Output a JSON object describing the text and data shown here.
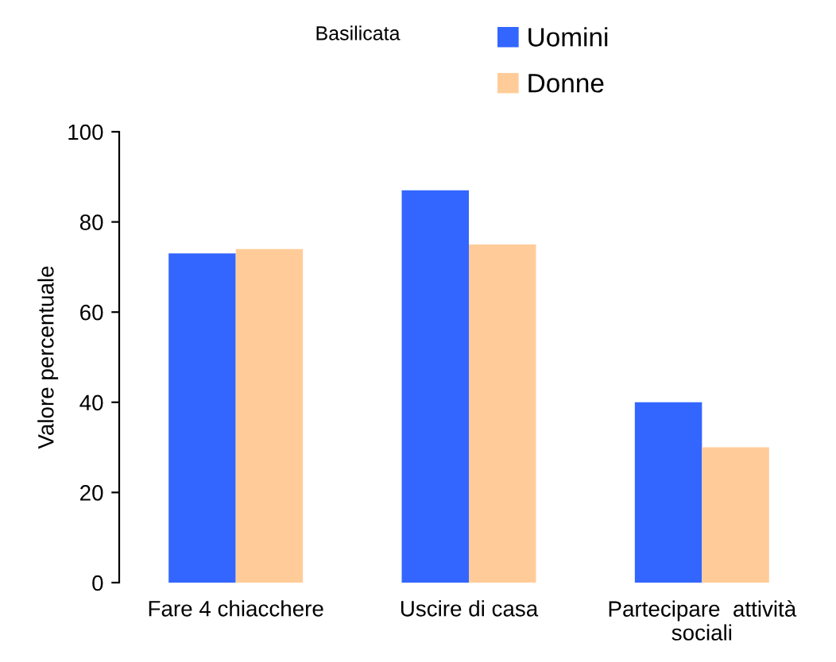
{
  "chart_data": {
    "type": "bar",
    "title": "Basilicata",
    "ylabel": "Valore percentuale",
    "categories": [
      "Fare 4 chiacchere",
      "Uscire di casa",
      "Partecipare  attività\nsociali"
    ],
    "series": [
      {
        "name": "Uomini",
        "color": "#3366ff",
        "values": [
          73,
          87,
          40
        ]
      },
      {
        "name": "Donne",
        "color": "#ffcc99",
        "values": [
          74,
          75,
          30
        ]
      }
    ],
    "ylim": [
      0,
      100
    ],
    "yticks": [
      0,
      20,
      40,
      60,
      80,
      100
    ],
    "grid": false,
    "legend": "top"
  }
}
